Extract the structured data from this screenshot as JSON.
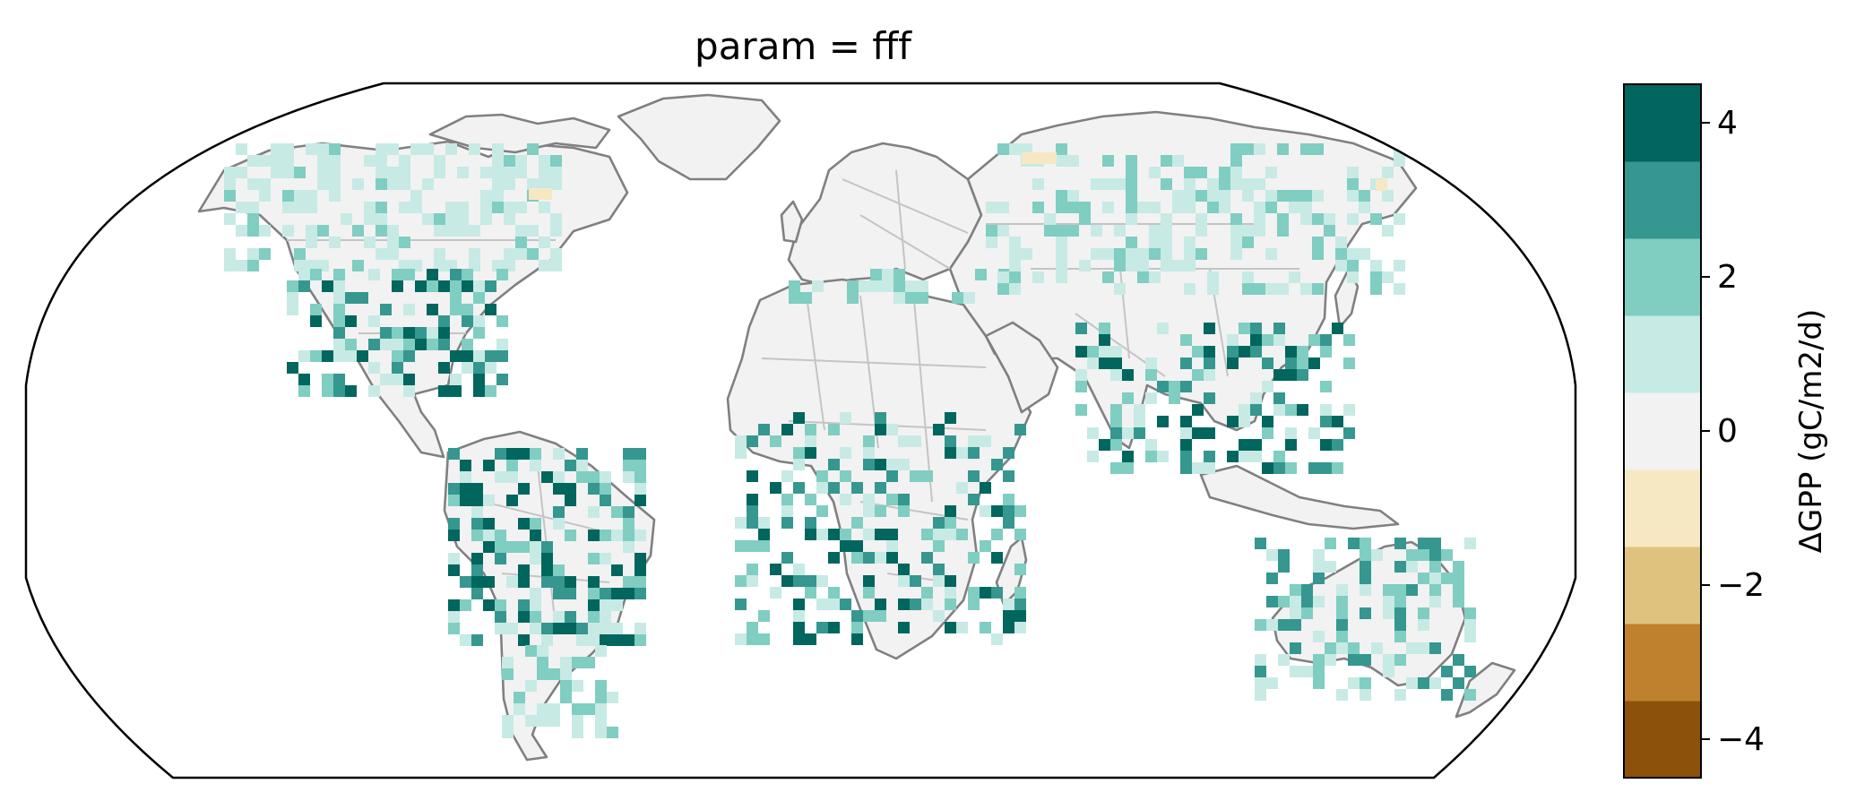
{
  "title": "param = fff",
  "colorbar": {
    "label": "ΔGPP (gC/m2/d)",
    "range": [
      -4.5,
      4.5
    ],
    "levels": [
      -4.5,
      -3.5,
      -2.5,
      -1.5,
      -0.5,
      0.5,
      1.5,
      2.5,
      3.5,
      4.5
    ],
    "ticks": [
      {
        "value": 4,
        "label": "4"
      },
      {
        "value": 2,
        "label": "2"
      },
      {
        "value": 0,
        "label": "0"
      },
      {
        "value": -2,
        "label": "−2"
      },
      {
        "value": -4,
        "label": "−4"
      }
    ],
    "colors": [
      "#543005",
      "#8c510a",
      "#bf812d",
      "#dfc27d",
      "#f6e8c3",
      "#f2f2f2",
      "#c7eae5",
      "#80cdc1",
      "#35978f",
      "#01665e",
      "#003c30"
    ]
  },
  "map": {
    "projection": "Robinson",
    "ocean_color": "#ffffff",
    "land_color": "#f2f2f2",
    "coastline_color": "#808080",
    "border_color": "#c4c4c4"
  }
}
